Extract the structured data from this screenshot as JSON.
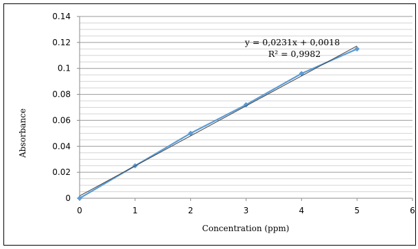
{
  "chart_data": {
    "type": "scatter",
    "xlabel": "Concentration (ppm)",
    "ylabel": "Absorbance",
    "xlim": [
      0,
      6
    ],
    "ylim": [
      0,
      0.14
    ],
    "x_ticks": [
      "0",
      "1",
      "2",
      "3",
      "4",
      "5",
      "6"
    ],
    "y_ticks": [
      "0",
      "0.02",
      "0.04",
      "0.06",
      "0.08",
      "0.1",
      "0.12",
      "0.14"
    ],
    "grid": true,
    "series": [
      {
        "x": [
          0,
          1,
          2,
          3,
          4,
          5
        ],
        "y": [
          0,
          0.025,
          0.05,
          0.072,
          0.096,
          0.115
        ],
        "color": "#5b9bd5",
        "marker": "diamond",
        "connected": true
      }
    ],
    "trendline": {
      "slope": 0.0231,
      "intercept": 0.0018,
      "x_range": [
        0,
        5
      ],
      "color": "#404040",
      "equation": "y = 0,0231x + 0,0018",
      "r_squared": "R² = 0,9982"
    }
  }
}
